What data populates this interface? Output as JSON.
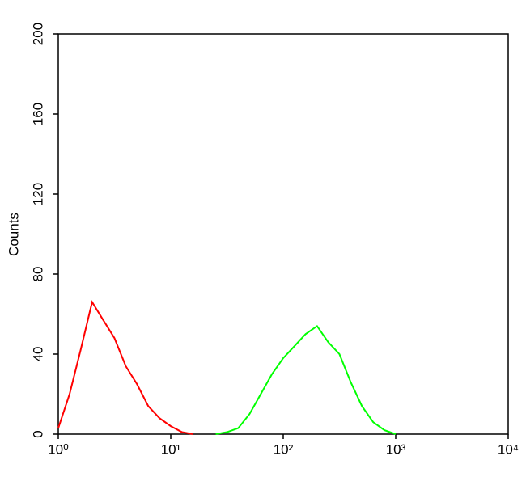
{
  "chart_data": {
    "type": "line",
    "y_label": "Counts",
    "x": [
      1,
      1.26,
      1.58,
      2,
      2.51,
      3.16,
      3.98,
      5.01,
      6.31,
      7.94,
      10,
      12.6,
      15.8,
      20,
      25.1,
      31.6,
      39.8,
      50.1,
      63.1,
      79.4,
      100,
      126,
      158,
      200,
      251,
      316,
      398,
      501,
      631,
      794,
      1000
    ],
    "series": [
      {
        "name": "red",
        "color": "#ff0000",
        "values": [
          3,
          20,
          42,
          66,
          57,
          48,
          34,
          25,
          14,
          8,
          4,
          1,
          0,
          null,
          null,
          null,
          null,
          null,
          null,
          null,
          null,
          null,
          null,
          null,
          null,
          null,
          null,
          null,
          null,
          null,
          null
        ]
      },
      {
        "name": "green",
        "color": "#00ff00",
        "values": [
          null,
          null,
          null,
          null,
          null,
          null,
          null,
          null,
          null,
          null,
          null,
          null,
          null,
          null,
          0,
          1,
          3,
          10,
          20,
          30,
          38,
          44,
          50,
          54,
          46,
          40,
          26,
          14,
          6,
          2,
          0
        ]
      }
    ],
    "xlog": true,
    "xlim": [
      1,
      10000
    ],
    "xticks": [
      {
        "value": 1,
        "label": "10⁰"
      },
      {
        "value": 10,
        "label": "10¹"
      },
      {
        "value": 100,
        "label": "10²"
      },
      {
        "value": 1000,
        "label": "10³"
      },
      {
        "value": 10000,
        "label": "10⁴"
      }
    ],
    "ylim": [
      0,
      200
    ],
    "yticks": [
      0,
      40,
      80,
      120,
      160,
      200
    ]
  }
}
